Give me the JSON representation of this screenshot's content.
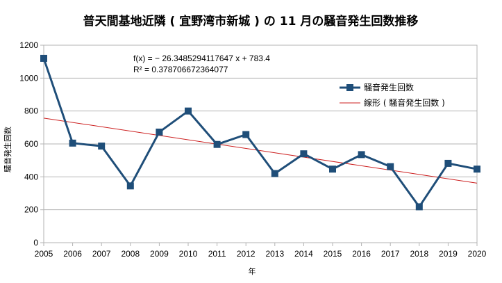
{
  "chart_data": {
    "type": "line",
    "title": "普天間基地近隣 ( 宜野湾市新城 ) の 11 月の騒音発生回数推移",
    "xlabel": "年",
    "ylabel": "騒音発生回数",
    "x": [
      2005,
      2006,
      2007,
      2008,
      2009,
      2010,
      2011,
      2012,
      2013,
      2014,
      2015,
      2016,
      2017,
      2018,
      2019,
      2020
    ],
    "series": [
      {
        "name": "騒音発生回数",
        "color": "#1f4e79",
        "marker": "square",
        "values": [
          1120,
          605,
          587,
          345,
          672,
          800,
          597,
          657,
          420,
          540,
          447,
          535,
          462,
          218,
          482,
          447
        ]
      }
    ],
    "trendline": {
      "name": "線形  ( 騒音発生回数 )",
      "color": "#cc1f1f",
      "slope": -26.3485294117647,
      "intercept": 783.4,
      "x_origin": 2004,
      "equation": "f(x) = − 26.3485294117647 x + 783.4",
      "r_squared": "R² = 0.378706672364077"
    },
    "ylim": [
      0,
      1200
    ],
    "yticks": [
      0,
      200,
      400,
      600,
      800,
      1000,
      1200
    ],
    "xlim": [
      2005,
      2020
    ],
    "grid": true,
    "legend_position": "right"
  }
}
